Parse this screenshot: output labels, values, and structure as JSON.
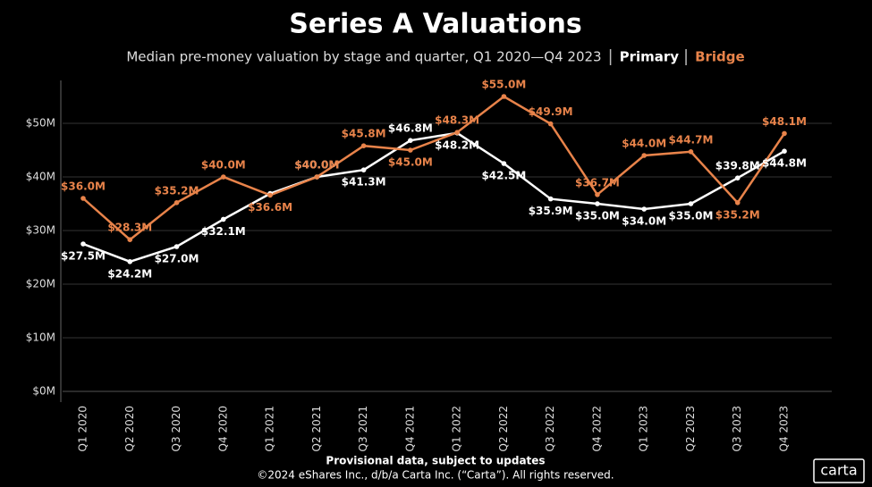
{
  "chart_data": {
    "type": "line",
    "title": "Series A Valuations",
    "subtitle": "Median pre-money valuation by stage and quarter, Q1 2020—Q4 2023",
    "categories": [
      "Q1 2020",
      "Q2 2020",
      "Q3 2020",
      "Q4 2020",
      "Q1 2021",
      "Q2 2021",
      "Q3 2021",
      "Q4 2021",
      "Q1 2022",
      "Q2 2022",
      "Q3 2022",
      "Q4 2022",
      "Q1 2023",
      "Q2 2023",
      "Q3 2023",
      "Q4 2023"
    ],
    "series": [
      {
        "name": "Primary",
        "color": "#ffffff",
        "values": [
          27.5,
          24.2,
          27.0,
          32.1,
          36.9,
          40.0,
          41.3,
          46.8,
          48.2,
          42.5,
          35.9,
          35.0,
          34.0,
          35.0,
          39.8,
          44.8
        ],
        "value_labels": [
          "$27.5M",
          "$24.2M",
          "$27.0M",
          "$32.1M",
          null,
          "$40.0M",
          "$41.3M",
          "$46.8M",
          "$48.2M",
          "$42.5M",
          "$35.9M",
          "$35.0M",
          "$34.0M",
          "$35.0M",
          "$39.8M",
          "$44.8M"
        ]
      },
      {
        "name": "Bridge",
        "color": "#e8834a",
        "values": [
          36.0,
          28.3,
          35.2,
          40.0,
          36.6,
          40.0,
          45.8,
          45.0,
          48.3,
          55.0,
          49.9,
          36.7,
          44.0,
          44.7,
          35.2,
          48.1
        ],
        "value_labels": [
          "$36.0M",
          "$28.3M",
          "$35.2M",
          "$40.0M",
          "$36.6M",
          "$40.0M",
          "$45.8M",
          "$45.0M",
          "$48.3M",
          "$55.0M",
          "$49.9M",
          "$36.7M",
          "$44.0M",
          "$44.7M",
          "$35.2M",
          "$48.1M"
        ]
      }
    ],
    "ylim": [
      0,
      58
    ],
    "yticks": [
      {
        "value": 0,
        "label": "$0M"
      },
      {
        "value": 10,
        "label": "$10M"
      },
      {
        "value": 20,
        "label": "$20M"
      },
      {
        "value": 30,
        "label": "$30M"
      },
      {
        "value": 40,
        "label": "$40M"
      },
      {
        "value": 50,
        "label": "$50M"
      }
    ],
    "grid": true,
    "footnote": "Provisional data, subject to updates",
    "copyright": "©2024 eShares Inc., d/b/a Carta Inc. (“Carta”). All rights reserved.",
    "logo": "carta"
  }
}
